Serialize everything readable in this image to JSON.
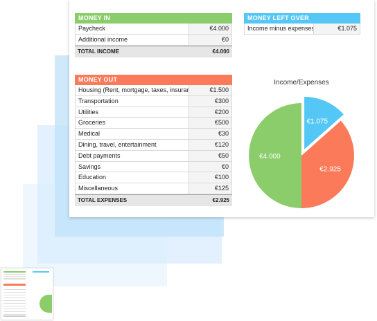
{
  "money_in": {
    "header": "MONEY IN",
    "rows": [
      {
        "label": "Paycheck",
        "value": "€4.000"
      },
      {
        "label": "Additional income",
        "value": "€0"
      }
    ],
    "total_label": "TOTAL INCOME",
    "total_value": "€4.000"
  },
  "money_left": {
    "header": "MONEY LEFT OVER",
    "rows": [
      {
        "label": "Income minus expenses",
        "value": "€1.075"
      }
    ]
  },
  "money_out": {
    "header": "MONEY OUT",
    "rows": [
      {
        "label": "Housing (Rent, mortgage, taxes, insurance)",
        "value": "€1.500"
      },
      {
        "label": "Transportation",
        "value": "€300"
      },
      {
        "label": "Utilities",
        "value": "€200"
      },
      {
        "label": "Groceries",
        "value": "€500"
      },
      {
        "label": "Medical",
        "value": "€30"
      },
      {
        "label": "Dining, travel, entertainment",
        "value": "€120"
      },
      {
        "label": "Debt payments",
        "value": "€50"
      },
      {
        "label": "Savings",
        "value": "€0"
      },
      {
        "label": "Education",
        "value": "€100"
      },
      {
        "label": "Miscellaneous",
        "value": "€125"
      }
    ],
    "total_label": "TOTAL EXPENSES",
    "total_value": "€2.925"
  },
  "chart": {
    "title": "Income/Expenses",
    "slices": [
      {
        "label": "€1.075",
        "value": 1075,
        "color": "#55c7f6"
      },
      {
        "label": "€2.925",
        "value": 2925,
        "color": "#fb7a5a"
      },
      {
        "label": "€4.000",
        "value": 4000,
        "color": "#8ccd6b"
      }
    ]
  }
}
